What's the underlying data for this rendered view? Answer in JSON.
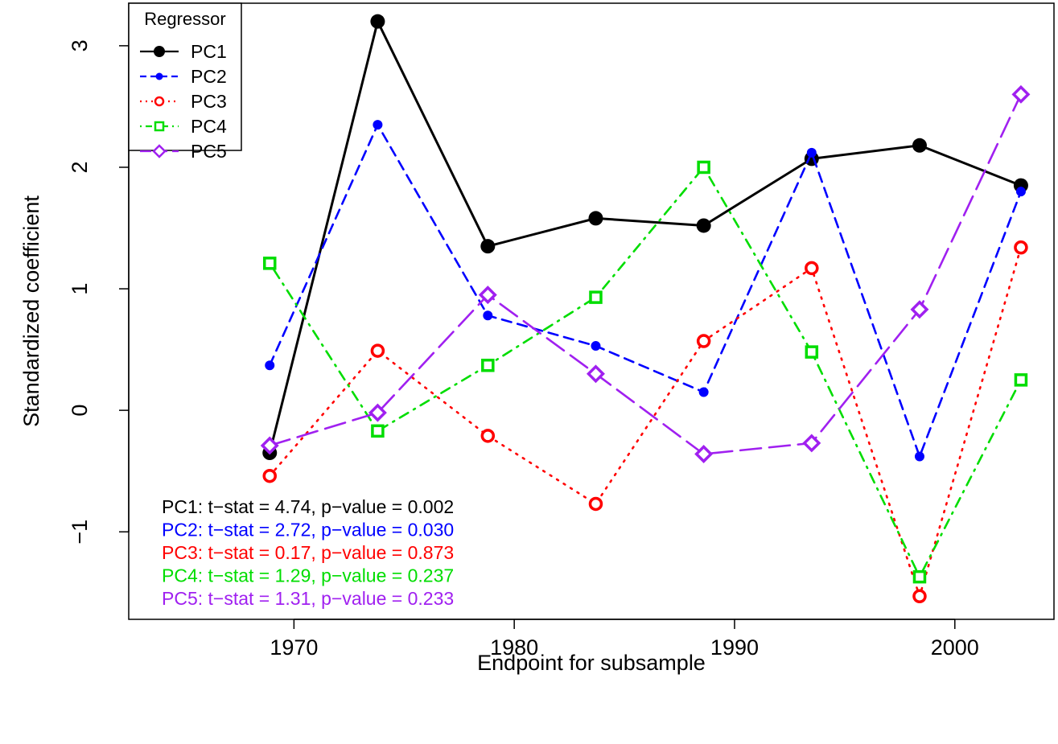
{
  "chart_data": {
    "type": "line",
    "title": "",
    "xlabel": "Endpoint for subsample",
    "ylabel": "Standardized coefficient",
    "xlim": [
      1962.5,
      2004.5
    ],
    "ylim": [
      -1.72,
      3.35
    ],
    "x_ticks": [
      1970,
      1980,
      1990,
      2000
    ],
    "y_ticks": [
      -1,
      0,
      1,
      2,
      3
    ],
    "x_tick_labels": [
      "1970",
      "1980",
      "1990",
      "2000"
    ],
    "y_tick_labels": [
      "−1",
      "0",
      "1",
      "2",
      "3"
    ],
    "grid": false,
    "x": [
      1968.9,
      1973.8,
      1978.8,
      1983.7,
      1988.6,
      1993.5,
      1998.4,
      2003.0
    ],
    "legend": {
      "title": "Regressor",
      "position": "top-left"
    },
    "series": [
      {
        "name": "PC1",
        "color": "#000000",
        "marker": "filled-circle",
        "line": "solid",
        "values": [
          -0.35,
          3.2,
          1.35,
          1.58,
          1.52,
          2.07,
          2.18,
          1.85
        ]
      },
      {
        "name": "PC2",
        "color": "#0000ff",
        "marker": "small-filled-circle",
        "line": "dashed",
        "values": [
          0.37,
          2.35,
          0.78,
          0.53,
          0.15,
          2.12,
          -0.38,
          1.8
        ]
      },
      {
        "name": "PC3",
        "color": "#ff0000",
        "marker": "open-circle",
        "line": "dotted",
        "values": [
          -0.54,
          0.49,
          -0.21,
          -0.77,
          0.57,
          1.17,
          -1.53,
          1.34
        ]
      },
      {
        "name": "PC4",
        "color": "#00dd00",
        "marker": "open-square",
        "line": "dotdash",
        "values": [
          1.21,
          -0.17,
          0.37,
          0.93,
          2.0,
          0.48,
          -1.37,
          0.25
        ]
      },
      {
        "name": "PC5",
        "color": "#a020f0",
        "marker": "open-diamond",
        "line": "longdash",
        "values": [
          -0.29,
          -0.02,
          0.95,
          0.3,
          -0.36,
          -0.27,
          0.83,
          2.6
        ]
      }
    ],
    "annotations": [
      {
        "text": "PC1: t−stat = 4.74, p−value = 0.002",
        "color": "#000000"
      },
      {
        "text": "PC2: t−stat = 2.72, p−value = 0.030",
        "color": "#0000ff"
      },
      {
        "text": "PC3: t−stat = 0.17, p−value = 0.873",
        "color": "#ff0000"
      },
      {
        "text": "PC4: t−stat = 1.29, p−value = 0.237",
        "color": "#00dd00"
      },
      {
        "text": "PC5: t−stat = 1.31, p−value = 0.233",
        "color": "#a020f0"
      }
    ]
  }
}
